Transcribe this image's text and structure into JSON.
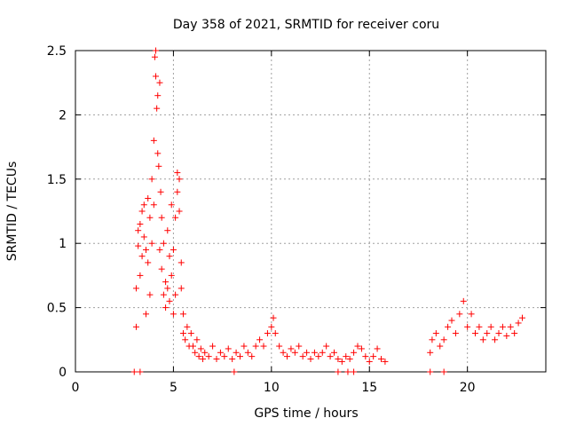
{
  "chart_data": {
    "type": "scatter",
    "title": "Day 358 of 2021, SRMTID for receiver coru",
    "xlabel": "GPS time / hours",
    "ylabel": "SRMTID / TECUs",
    "xlim": [
      0,
      24
    ],
    "ylim": [
      0,
      2.5
    ],
    "x_ticks": [
      0,
      5,
      10,
      15,
      20
    ],
    "x_tick_labels": [
      "0",
      "5",
      "10",
      "15",
      "20"
    ],
    "y_ticks": [
      0,
      0.5,
      1,
      1.5,
      2,
      2.5
    ],
    "y_tick_labels": [
      "0",
      "0.5",
      "1",
      "1.5",
      "2",
      "2.5"
    ],
    "grid": true,
    "marker": "plus",
    "marker_color": "#ff0000",
    "series": [
      {
        "name": "SRMTID",
        "points": [
          [
            3.1,
            0.35
          ],
          [
            3.1,
            0.65
          ],
          [
            3.2,
            0.98
          ],
          [
            3.2,
            1.1
          ],
          [
            3.3,
            1.15
          ],
          [
            3.3,
            0.75
          ],
          [
            3.4,
            0.9
          ],
          [
            3.4,
            1.25
          ],
          [
            3.5,
            1.3
          ],
          [
            3.5,
            1.05
          ],
          [
            3.6,
            0.95
          ],
          [
            3.6,
            0.45
          ],
          [
            3.7,
            0.85
          ],
          [
            3.7,
            1.35
          ],
          [
            3.8,
            1.2
          ],
          [
            3.8,
            0.6
          ],
          [
            3.9,
            1.5
          ],
          [
            3.9,
            1.0
          ],
          [
            4.0,
            1.8
          ],
          [
            4.0,
            1.3
          ],
          [
            4.05,
            2.45
          ],
          [
            4.1,
            2.5
          ],
          [
            4.1,
            2.3
          ],
          [
            4.15,
            2.05
          ],
          [
            4.2,
            1.7
          ],
          [
            4.2,
            2.15
          ],
          [
            4.25,
            1.6
          ],
          [
            4.3,
            2.25
          ],
          [
            4.3,
            0.95
          ],
          [
            4.35,
            1.4
          ],
          [
            4.4,
            0.8
          ],
          [
            4.4,
            1.2
          ],
          [
            4.5,
            0.6
          ],
          [
            4.5,
            1.0
          ],
          [
            4.6,
            0.5
          ],
          [
            4.6,
            0.7
          ],
          [
            4.7,
            1.1
          ],
          [
            4.7,
            0.65
          ],
          [
            4.8,
            0.9
          ],
          [
            4.8,
            0.55
          ],
          [
            4.9,
            1.3
          ],
          [
            4.9,
            0.75
          ],
          [
            5.0,
            0.45
          ],
          [
            5.0,
            0.95
          ],
          [
            5.1,
            1.2
          ],
          [
            5.1,
            0.6
          ],
          [
            5.2,
            1.55
          ],
          [
            5.2,
            1.4
          ],
          [
            5.3,
            1.5
          ],
          [
            5.3,
            1.25
          ],
          [
            5.4,
            0.85
          ],
          [
            5.4,
            0.65
          ],
          [
            5.5,
            0.45
          ],
          [
            5.5,
            0.3
          ],
          [
            5.6,
            0.25
          ],
          [
            5.7,
            0.35
          ],
          [
            5.8,
            0.2
          ],
          [
            5.9,
            0.3
          ],
          [
            6.0,
            0.2
          ],
          [
            6.1,
            0.15
          ],
          [
            6.2,
            0.25
          ],
          [
            6.3,
            0.12
          ],
          [
            6.4,
            0.18
          ],
          [
            6.5,
            0.1
          ],
          [
            6.6,
            0.15
          ],
          [
            6.8,
            0.12
          ],
          [
            7.0,
            0.2
          ],
          [
            7.2,
            0.1
          ],
          [
            7.4,
            0.15
          ],
          [
            7.6,
            0.12
          ],
          [
            7.8,
            0.18
          ],
          [
            8.0,
            0.1
          ],
          [
            8.2,
            0.15
          ],
          [
            8.4,
            0.12
          ],
          [
            8.6,
            0.2
          ],
          [
            8.8,
            0.15
          ],
          [
            9.0,
            0.12
          ],
          [
            9.2,
            0.2
          ],
          [
            9.4,
            0.25
          ],
          [
            9.6,
            0.2
          ],
          [
            9.8,
            0.3
          ],
          [
            10.0,
            0.35
          ],
          [
            10.1,
            0.42
          ],
          [
            10.2,
            0.3
          ],
          [
            10.4,
            0.2
          ],
          [
            10.6,
            0.15
          ],
          [
            10.8,
            0.12
          ],
          [
            11.0,
            0.18
          ],
          [
            11.2,
            0.15
          ],
          [
            11.4,
            0.2
          ],
          [
            11.6,
            0.12
          ],
          [
            11.8,
            0.15
          ],
          [
            12.0,
            0.1
          ],
          [
            12.2,
            0.15
          ],
          [
            12.4,
            0.12
          ],
          [
            12.6,
            0.15
          ],
          [
            12.8,
            0.2
          ],
          [
            13.0,
            0.12
          ],
          [
            13.2,
            0.15
          ],
          [
            13.4,
            0.1
          ],
          [
            13.6,
            0.08
          ],
          [
            13.8,
            0.12
          ],
          [
            14.0,
            0.1
          ],
          [
            14.2,
            0.15
          ],
          [
            14.4,
            0.2
          ],
          [
            14.6,
            0.18
          ],
          [
            14.8,
            0.12
          ],
          [
            15.0,
            0.08
          ],
          [
            15.2,
            0.12
          ],
          [
            15.4,
            0.18
          ],
          [
            15.6,
            0.1
          ],
          [
            15.8,
            0.08
          ],
          [
            18.1,
            0.15
          ],
          [
            18.2,
            0.25
          ],
          [
            18.4,
            0.3
          ],
          [
            18.6,
            0.2
          ],
          [
            18.8,
            0.25
          ],
          [
            19.0,
            0.35
          ],
          [
            19.2,
            0.4
          ],
          [
            19.4,
            0.3
          ],
          [
            19.6,
            0.45
          ],
          [
            19.8,
            0.55
          ],
          [
            20.0,
            0.35
          ],
          [
            20.2,
            0.45
          ],
          [
            20.4,
            0.3
          ],
          [
            20.6,
            0.35
          ],
          [
            20.8,
            0.25
          ],
          [
            21.0,
            0.3
          ],
          [
            21.2,
            0.35
          ],
          [
            21.4,
            0.25
          ],
          [
            21.6,
            0.3
          ],
          [
            21.8,
            0.35
          ],
          [
            22.0,
            0.28
          ],
          [
            22.2,
            0.35
          ],
          [
            22.4,
            0.3
          ],
          [
            22.6,
            0.38
          ],
          [
            22.8,
            0.42
          ],
          [
            3.0,
            0.0
          ],
          [
            3.3,
            0.0
          ],
          [
            8.1,
            0.0
          ],
          [
            13.4,
            0.0
          ],
          [
            13.9,
            0.0
          ],
          [
            14.2,
            0.0
          ],
          [
            18.1,
            0.0
          ],
          [
            18.8,
            0.0
          ]
        ]
      }
    ]
  }
}
